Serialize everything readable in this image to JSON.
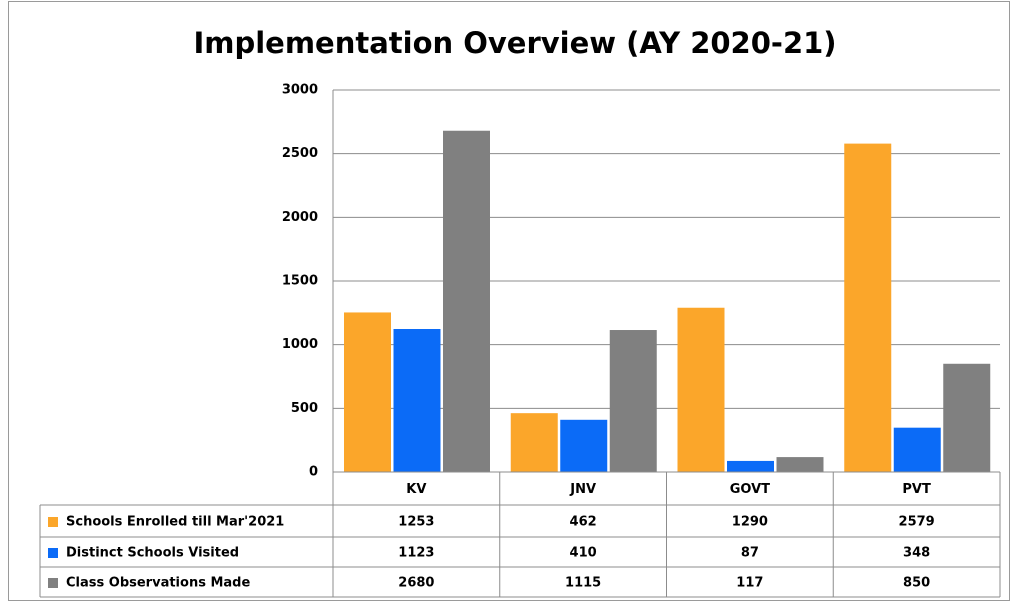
{
  "chart_data": {
    "type": "bar",
    "title": "Implementation Overview (AY 2020-21)",
    "categories": [
      "KV",
      "JNV",
      "GOVT",
      "PVT"
    ],
    "series": [
      {
        "name": "Schools Enrolled till Mar'2021",
        "color": "#fba62a",
        "values": [
          1253,
          462,
          1290,
          2579
        ]
      },
      {
        "name": "Distinct Schools Visited",
        "color": "#0b6bf7",
        "values": [
          1123,
          410,
          87,
          348
        ]
      },
      {
        "name": "Class Observations Made",
        "color": "#808080",
        "values": [
          2680,
          1115,
          117,
          850
        ]
      }
    ],
    "ylim": [
      0,
      3000
    ],
    "yticks": [
      0,
      500,
      1000,
      1500,
      2000,
      2500,
      3000
    ],
    "grid": true
  }
}
